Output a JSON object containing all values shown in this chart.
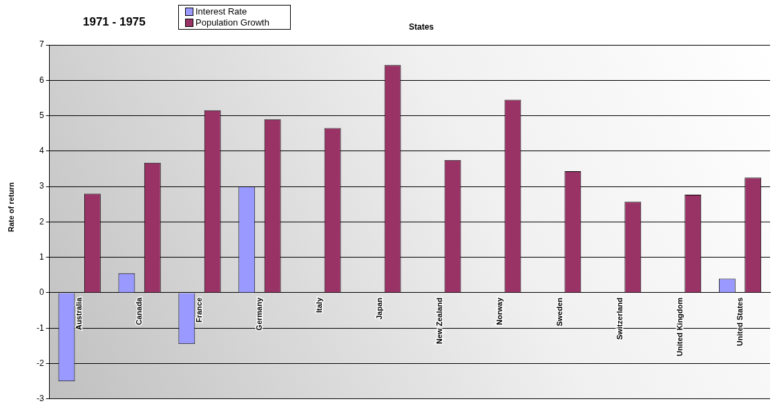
{
  "chart_data": {
    "type": "bar",
    "title": "1971 - 1975",
    "xlabel": "States",
    "ylabel": "Rate of return",
    "categories": [
      "Australia",
      "Canada",
      "France",
      "Germany",
      "Italy",
      "Japan",
      "New Zealand",
      "Norway",
      "Sweden",
      "Switzerland",
      "United Kingdom",
      "United States"
    ],
    "series": [
      {
        "name": "Interest Rate",
        "color": "#9999ff",
        "values": [
          -2.5,
          0.55,
          -1.45,
          3.0,
          null,
          null,
          null,
          null,
          null,
          null,
          null,
          0.4
        ]
      },
      {
        "name": "Population Growth",
        "color": "#993366",
        "values": [
          2.8,
          3.67,
          5.15,
          4.9,
          4.65,
          6.43,
          3.75,
          5.45,
          3.43,
          2.57,
          2.77,
          3.25
        ]
      }
    ],
    "ylim": [
      -3,
      7
    ],
    "yticks": [
      -3,
      -2,
      -1,
      0,
      1,
      2,
      3,
      4,
      5,
      6,
      7
    ],
    "grid": "y",
    "legend": "top"
  }
}
